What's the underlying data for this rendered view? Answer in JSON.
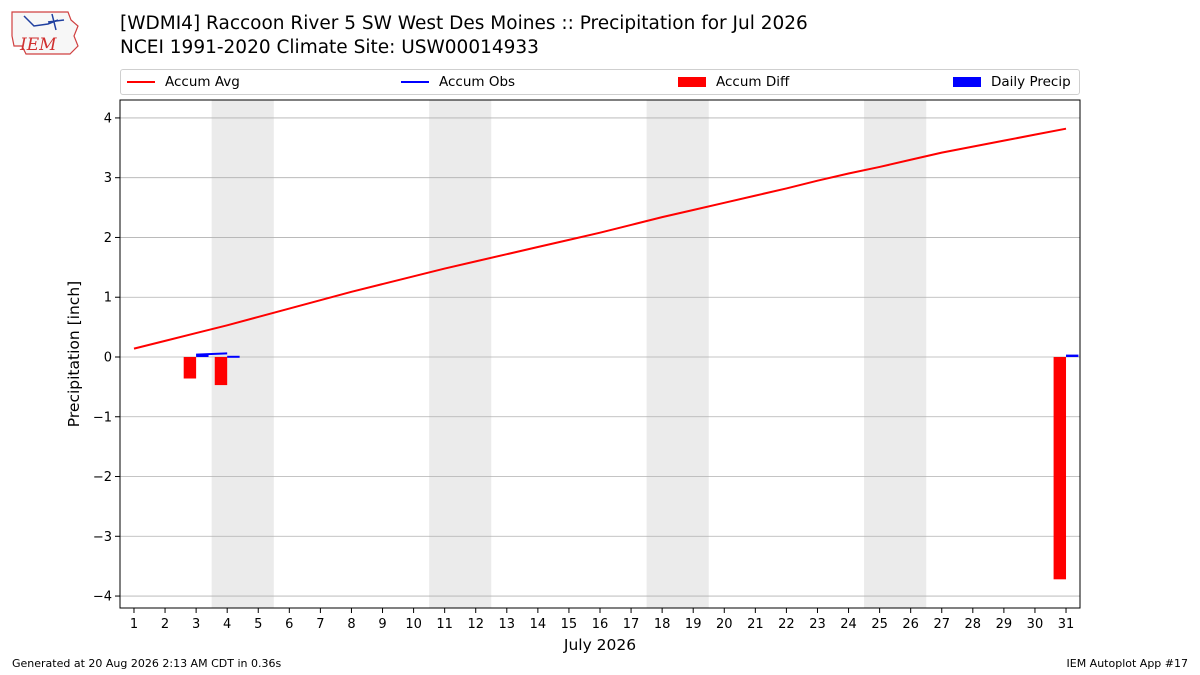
{
  "header": {
    "title_line1": "[WDMI4] Raccoon River 5 SW West Des Moines :: Precipitation for Jul 2026",
    "title_line2": "NCEI 1991-2020 Climate Site: USW00014933",
    "logo_text": "IEM"
  },
  "footer": {
    "left": "Generated at 20 Aug 2026 2:13 AM CDT in 0.36s",
    "right": "IEM Autoplot App #17"
  },
  "legend": [
    {
      "label": "Accum Avg",
      "kind": "line",
      "color": "#ff0000"
    },
    {
      "label": "Accum Obs",
      "kind": "line",
      "color": "#0000ff"
    },
    {
      "label": "Accum Diff",
      "kind": "patch",
      "color": "#ff0000"
    },
    {
      "label": "Daily Precip",
      "kind": "patch",
      "color": "#0000ff"
    }
  ],
  "chart_data": {
    "type": "line",
    "xlabel": "July 2026",
    "ylabel": "Precipitation [inch]",
    "x": [
      1,
      2,
      3,
      4,
      5,
      6,
      7,
      8,
      9,
      10,
      11,
      12,
      13,
      14,
      15,
      16,
      17,
      18,
      19,
      20,
      21,
      22,
      23,
      24,
      25,
      26,
      27,
      28,
      29,
      30,
      31
    ],
    "xlim": [
      0.55,
      31.45
    ],
    "ylim": [
      -4.2,
      4.3
    ],
    "yticks": [
      -4,
      -3,
      -2,
      -1,
      0,
      1,
      2,
      3,
      4
    ],
    "grid_y": true,
    "weekend_shading": [
      [
        3.5,
        5.5
      ],
      [
        10.5,
        12.5
      ],
      [
        17.5,
        19.5
      ],
      [
        24.5,
        26.5
      ]
    ],
    "series": [
      {
        "name": "Accum Avg",
        "type": "line",
        "color": "#ff0000",
        "values": [
          0.14,
          0.27,
          0.4,
          0.53,
          0.67,
          0.81,
          0.95,
          1.09,
          1.22,
          1.35,
          1.48,
          1.6,
          1.72,
          1.84,
          1.96,
          2.08,
          2.21,
          2.34,
          2.46,
          2.58,
          2.7,
          2.82,
          2.95,
          3.07,
          3.18,
          3.3,
          3.42,
          3.52,
          3.62,
          3.72,
          3.82
        ]
      },
      {
        "name": "Accum Obs",
        "type": "line",
        "color": "#0000ff",
        "x": [
          3,
          4
        ],
        "values": [
          0.04,
          0.06
        ]
      },
      {
        "name": "Accum Diff",
        "type": "bar",
        "color": "#ff0000",
        "x": [
          3,
          4,
          31
        ],
        "values": [
          -0.36,
          -0.47,
          -3.72
        ]
      },
      {
        "name": "Daily Precip",
        "type": "bar",
        "color": "#0000ff",
        "x": [
          3,
          4,
          31
        ],
        "values": [
          0.04,
          0.02,
          0.04
        ]
      }
    ]
  }
}
